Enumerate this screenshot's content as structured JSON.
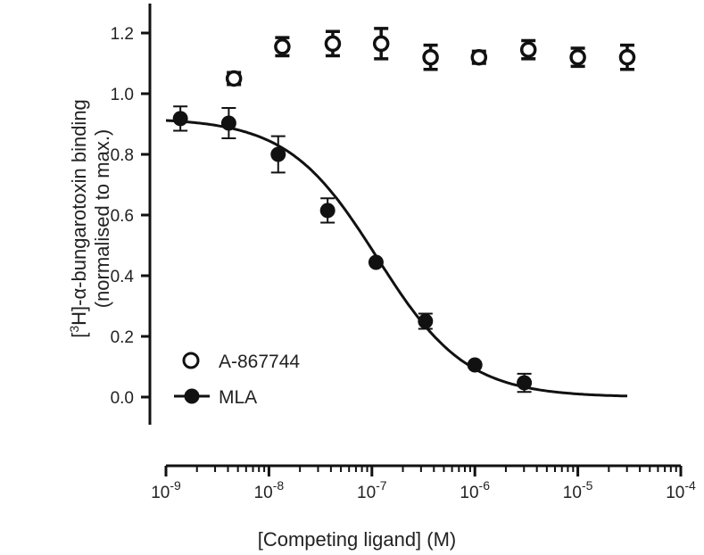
{
  "chart_data": {
    "type": "scatter",
    "title": "",
    "xlabel": "[Competing ligand] (M)",
    "ylabel_line1_prefix": "[",
    "ylabel_line1_sup": "3",
    "ylabel_line1_suffix": "H]-α-bungarotoxin binding",
    "ylabel_line2": "(normalised to max.)",
    "xscale": "log",
    "xlim_log10": [
      -9,
      -4
    ],
    "ylim": [
      -0.1,
      1.28
    ],
    "y_ticks": [
      "0.0",
      "0.2",
      "0.4",
      "0.6",
      "0.8",
      "1.0",
      "1.2"
    ],
    "x_ticks": [
      {
        "base": "10",
        "exp": "-9"
      },
      {
        "base": "10",
        "exp": "-8"
      },
      {
        "base": "10",
        "exp": "-7"
      },
      {
        "base": "10",
        "exp": "-6"
      },
      {
        "base": "10",
        "exp": "-5"
      },
      {
        "base": "10",
        "exp": "-4"
      }
    ],
    "legend_position": "bottom-left",
    "series": [
      {
        "name": "A-867744",
        "marker": "open-circle",
        "log10_x": [
          -8.34,
          -7.87,
          -7.38,
          -6.91,
          -6.43,
          -5.96,
          -5.48,
          -5.0,
          -4.52
        ],
        "y": [
          1.05,
          1.155,
          1.165,
          1.165,
          1.12,
          1.12,
          1.145,
          1.12,
          1.12
        ],
        "err": [
          0.02,
          0.03,
          0.04,
          0.05,
          0.04,
          0.02,
          0.03,
          0.03,
          0.04
        ]
      },
      {
        "name": "MLA",
        "marker": "filled-circle",
        "log10_x": [
          -8.86,
          -8.39,
          -7.91,
          -7.43,
          -6.96,
          -6.48,
          -6.0,
          -5.52
        ],
        "y": [
          0.918,
          0.903,
          0.8,
          0.615,
          0.444,
          0.25,
          0.106,
          0.047
        ],
        "err": [
          0.04,
          0.05,
          0.06,
          0.04,
          0.0,
          0.025,
          0.0,
          0.03
        ],
        "fit": {
          "model": "sigmoidal dose-response",
          "top": 0.92,
          "bottom": 0.0,
          "log_ic50": -6.95,
          "hill": 1.0,
          "log10_x_range": [
            -9.0,
            -4.52
          ]
        }
      }
    ],
    "colors": {
      "ink": "#111111"
    }
  }
}
